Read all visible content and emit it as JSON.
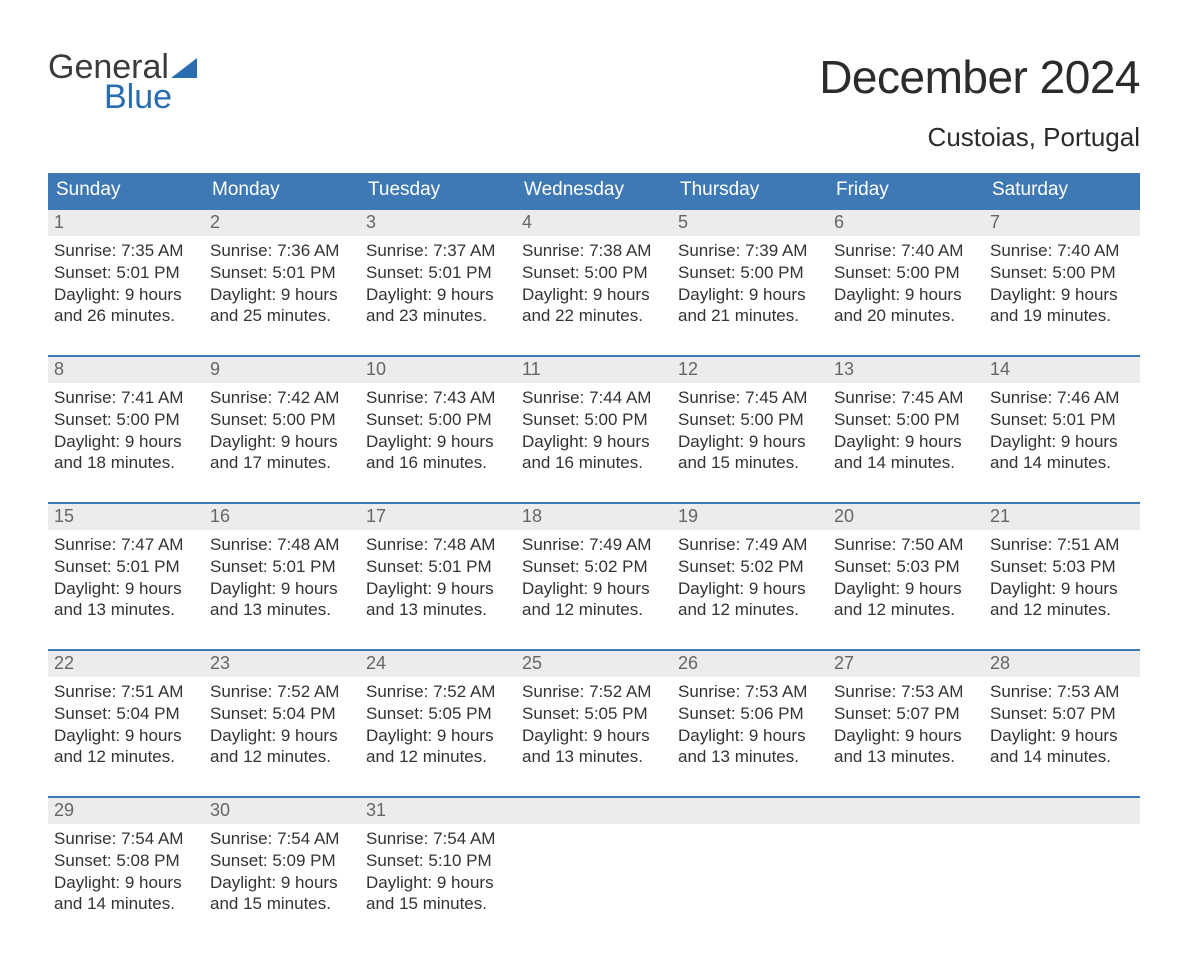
{
  "brand": {
    "top": "General",
    "bottom": "Blue"
  },
  "title": "December 2024",
  "location": "Custoias, Portugal",
  "colors": {
    "header_bg": "#3e79b6",
    "header_text": "#ffffff",
    "daynum_bg": "#ececec",
    "daynum_text": "#666666",
    "body_text": "#333333",
    "rule": "#3e79b6",
    "page_bg": "#ffffff",
    "logo_blue": "#2a6cb0",
    "logo_gray": "#3b3b3b"
  },
  "weekdays": [
    "Sunday",
    "Monday",
    "Tuesday",
    "Wednesday",
    "Thursday",
    "Friday",
    "Saturday"
  ],
  "weeks": [
    [
      {
        "n": "1",
        "sunrise": "Sunrise: 7:35 AM",
        "sunset": "Sunset: 5:01 PM",
        "d1": "Daylight: 9 hours",
        "d2": "and 26 minutes."
      },
      {
        "n": "2",
        "sunrise": "Sunrise: 7:36 AM",
        "sunset": "Sunset: 5:01 PM",
        "d1": "Daylight: 9 hours",
        "d2": "and 25 minutes."
      },
      {
        "n": "3",
        "sunrise": "Sunrise: 7:37 AM",
        "sunset": "Sunset: 5:01 PM",
        "d1": "Daylight: 9 hours",
        "d2": "and 23 minutes."
      },
      {
        "n": "4",
        "sunrise": "Sunrise: 7:38 AM",
        "sunset": "Sunset: 5:00 PM",
        "d1": "Daylight: 9 hours",
        "d2": "and 22 minutes."
      },
      {
        "n": "5",
        "sunrise": "Sunrise: 7:39 AM",
        "sunset": "Sunset: 5:00 PM",
        "d1": "Daylight: 9 hours",
        "d2": "and 21 minutes."
      },
      {
        "n": "6",
        "sunrise": "Sunrise: 7:40 AM",
        "sunset": "Sunset: 5:00 PM",
        "d1": "Daylight: 9 hours",
        "d2": "and 20 minutes."
      },
      {
        "n": "7",
        "sunrise": "Sunrise: 7:40 AM",
        "sunset": "Sunset: 5:00 PM",
        "d1": "Daylight: 9 hours",
        "d2": "and 19 minutes."
      }
    ],
    [
      {
        "n": "8",
        "sunrise": "Sunrise: 7:41 AM",
        "sunset": "Sunset: 5:00 PM",
        "d1": "Daylight: 9 hours",
        "d2": "and 18 minutes."
      },
      {
        "n": "9",
        "sunrise": "Sunrise: 7:42 AM",
        "sunset": "Sunset: 5:00 PM",
        "d1": "Daylight: 9 hours",
        "d2": "and 17 minutes."
      },
      {
        "n": "10",
        "sunrise": "Sunrise: 7:43 AM",
        "sunset": "Sunset: 5:00 PM",
        "d1": "Daylight: 9 hours",
        "d2": "and 16 minutes."
      },
      {
        "n": "11",
        "sunrise": "Sunrise: 7:44 AM",
        "sunset": "Sunset: 5:00 PM",
        "d1": "Daylight: 9 hours",
        "d2": "and 16 minutes."
      },
      {
        "n": "12",
        "sunrise": "Sunrise: 7:45 AM",
        "sunset": "Sunset: 5:00 PM",
        "d1": "Daylight: 9 hours",
        "d2": "and 15 minutes."
      },
      {
        "n": "13",
        "sunrise": "Sunrise: 7:45 AM",
        "sunset": "Sunset: 5:00 PM",
        "d1": "Daylight: 9 hours",
        "d2": "and 14 minutes."
      },
      {
        "n": "14",
        "sunrise": "Sunrise: 7:46 AM",
        "sunset": "Sunset: 5:01 PM",
        "d1": "Daylight: 9 hours",
        "d2": "and 14 minutes."
      }
    ],
    [
      {
        "n": "15",
        "sunrise": "Sunrise: 7:47 AM",
        "sunset": "Sunset: 5:01 PM",
        "d1": "Daylight: 9 hours",
        "d2": "and 13 minutes."
      },
      {
        "n": "16",
        "sunrise": "Sunrise: 7:48 AM",
        "sunset": "Sunset: 5:01 PM",
        "d1": "Daylight: 9 hours",
        "d2": "and 13 minutes."
      },
      {
        "n": "17",
        "sunrise": "Sunrise: 7:48 AM",
        "sunset": "Sunset: 5:01 PM",
        "d1": "Daylight: 9 hours",
        "d2": "and 13 minutes."
      },
      {
        "n": "18",
        "sunrise": "Sunrise: 7:49 AM",
        "sunset": "Sunset: 5:02 PM",
        "d1": "Daylight: 9 hours",
        "d2": "and 12 minutes."
      },
      {
        "n": "19",
        "sunrise": "Sunrise: 7:49 AM",
        "sunset": "Sunset: 5:02 PM",
        "d1": "Daylight: 9 hours",
        "d2": "and 12 minutes."
      },
      {
        "n": "20",
        "sunrise": "Sunrise: 7:50 AM",
        "sunset": "Sunset: 5:03 PM",
        "d1": "Daylight: 9 hours",
        "d2": "and 12 minutes."
      },
      {
        "n": "21",
        "sunrise": "Sunrise: 7:51 AM",
        "sunset": "Sunset: 5:03 PM",
        "d1": "Daylight: 9 hours",
        "d2": "and 12 minutes."
      }
    ],
    [
      {
        "n": "22",
        "sunrise": "Sunrise: 7:51 AM",
        "sunset": "Sunset: 5:04 PM",
        "d1": "Daylight: 9 hours",
        "d2": "and 12 minutes."
      },
      {
        "n": "23",
        "sunrise": "Sunrise: 7:52 AM",
        "sunset": "Sunset: 5:04 PM",
        "d1": "Daylight: 9 hours",
        "d2": "and 12 minutes."
      },
      {
        "n": "24",
        "sunrise": "Sunrise: 7:52 AM",
        "sunset": "Sunset: 5:05 PM",
        "d1": "Daylight: 9 hours",
        "d2": "and 12 minutes."
      },
      {
        "n": "25",
        "sunrise": "Sunrise: 7:52 AM",
        "sunset": "Sunset: 5:05 PM",
        "d1": "Daylight: 9 hours",
        "d2": "and 13 minutes."
      },
      {
        "n": "26",
        "sunrise": "Sunrise: 7:53 AM",
        "sunset": "Sunset: 5:06 PM",
        "d1": "Daylight: 9 hours",
        "d2": "and 13 minutes."
      },
      {
        "n": "27",
        "sunrise": "Sunrise: 7:53 AM",
        "sunset": "Sunset: 5:07 PM",
        "d1": "Daylight: 9 hours",
        "d2": "and 13 minutes."
      },
      {
        "n": "28",
        "sunrise": "Sunrise: 7:53 AM",
        "sunset": "Sunset: 5:07 PM",
        "d1": "Daylight: 9 hours",
        "d2": "and 14 minutes."
      }
    ],
    [
      {
        "n": "29",
        "sunrise": "Sunrise: 7:54 AM",
        "sunset": "Sunset: 5:08 PM",
        "d1": "Daylight: 9 hours",
        "d2": "and 14 minutes."
      },
      {
        "n": "30",
        "sunrise": "Sunrise: 7:54 AM",
        "sunset": "Sunset: 5:09 PM",
        "d1": "Daylight: 9 hours",
        "d2": "and 15 minutes."
      },
      {
        "n": "31",
        "sunrise": "Sunrise: 7:54 AM",
        "sunset": "Sunset: 5:10 PM",
        "d1": "Daylight: 9 hours",
        "d2": "and 15 minutes."
      },
      null,
      null,
      null,
      null
    ]
  ]
}
